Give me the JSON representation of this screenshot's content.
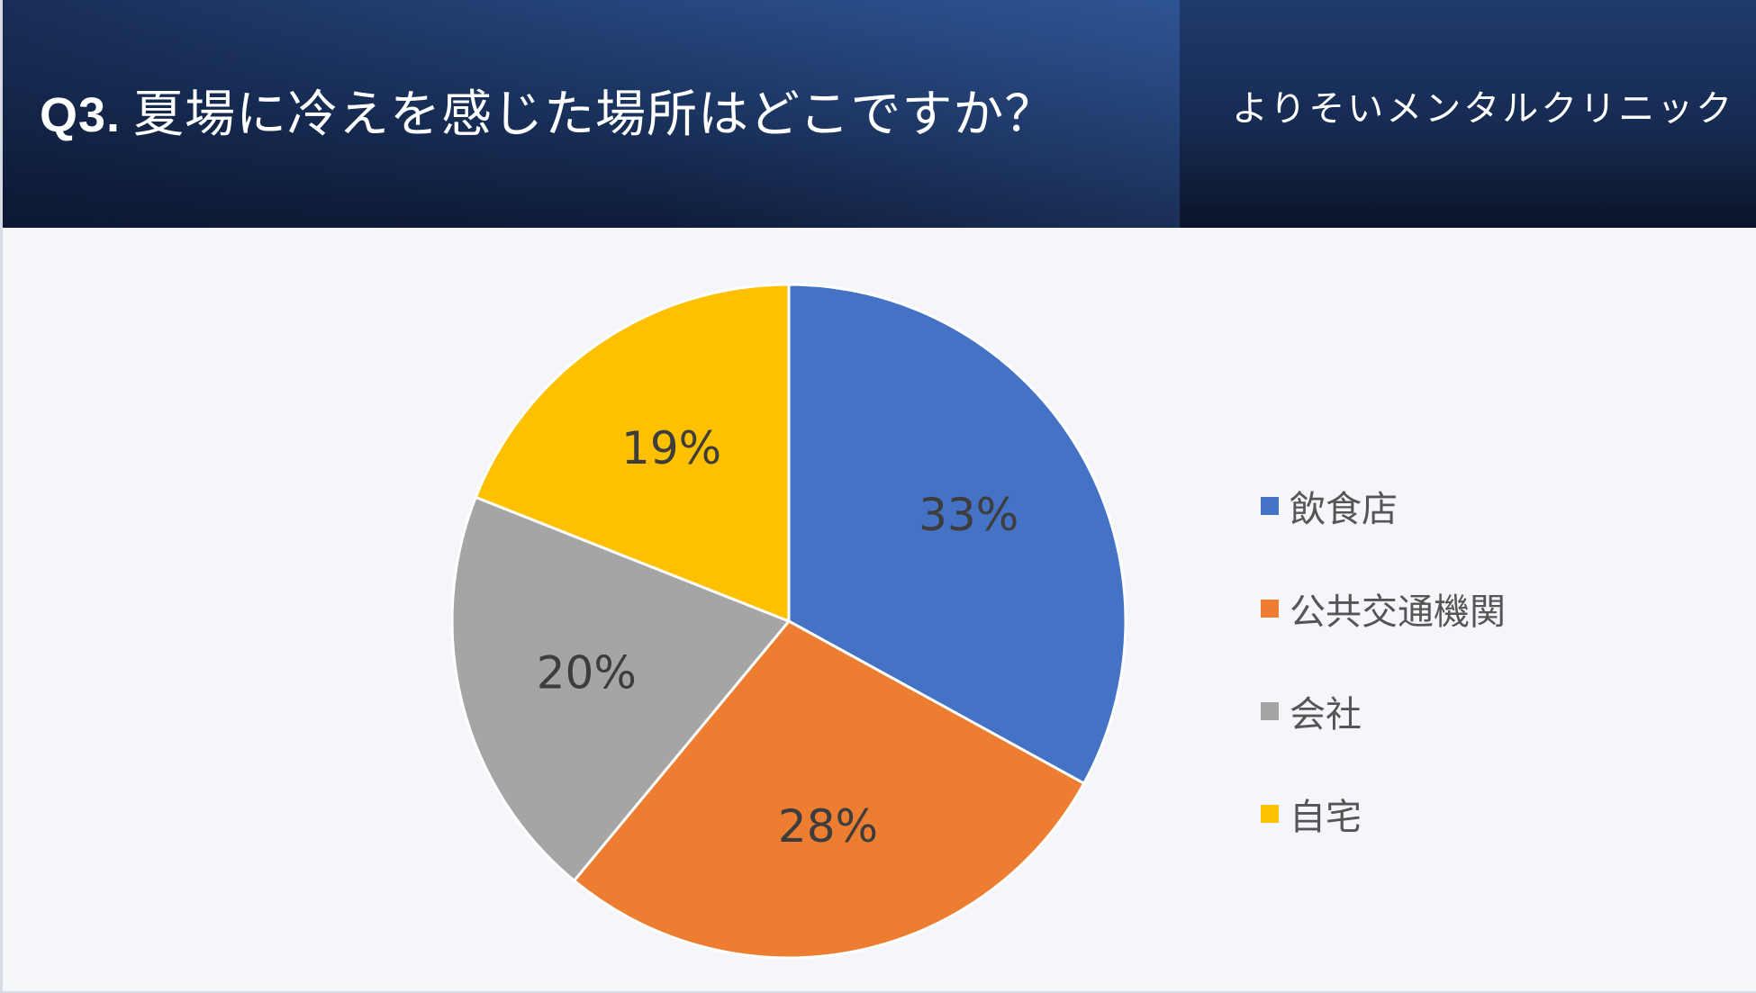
{
  "header": {
    "qnum": "Q3.",
    "question": "夏場に冷えを感じた場所はどこですか？",
    "clinic": "よりそいメンタルクリニック"
  },
  "chart_data": {
    "type": "pie",
    "categories": [
      "飲食店",
      "公共交通機関",
      "会社",
      "自宅"
    ],
    "values": [
      33,
      28,
      20,
      19
    ],
    "value_labels": [
      "33%",
      "28%",
      "20%",
      "19%"
    ],
    "colors": [
      "#4472c4",
      "#ed7d31",
      "#a5a5a5",
      "#ffc000"
    ],
    "start_angle": "12 o'clock",
    "direction": "clockwise",
    "legend_placement": "right"
  }
}
